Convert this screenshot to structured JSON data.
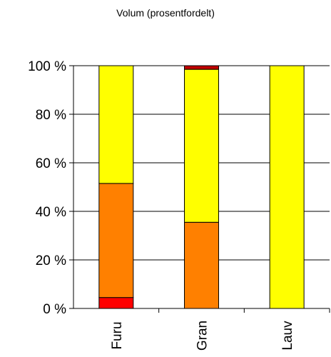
{
  "chart_data": {
    "type": "bar",
    "stacked": true,
    "title": "Volum (prosentfordelt)",
    "xlabel": "",
    "ylabel": "",
    "categories": [
      "Furu",
      "Gran",
      "Lauv"
    ],
    "ylim": [
      0,
      100
    ],
    "yticks": [
      "0 %",
      "20 %",
      "40 %",
      "60 %",
      "80 %",
      "100 %"
    ],
    "grid": true,
    "legend": "none",
    "series": [
      {
        "color": "#ff0000",
        "values": [
          4.5,
          0,
          0
        ]
      },
      {
        "color": "#ff8000",
        "values": [
          47,
          35.5,
          0
        ]
      },
      {
        "color": "#ffff00",
        "values": [
          48.5,
          63,
          100
        ]
      },
      {
        "color": "#c00000",
        "values": [
          0,
          1.5,
          0
        ]
      }
    ]
  }
}
